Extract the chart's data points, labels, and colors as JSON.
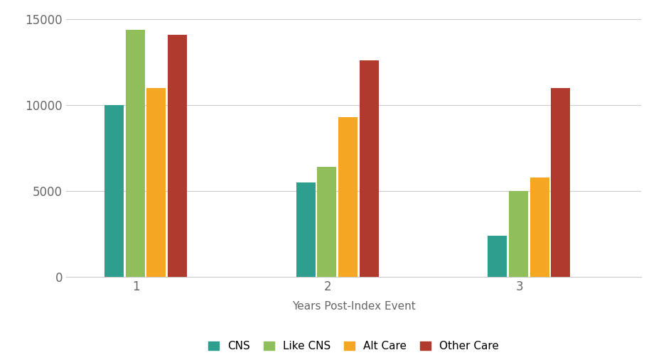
{
  "categories": [
    1,
    2,
    3
  ],
  "series": {
    "CNS": [
      10000,
      5500,
      2400
    ],
    "Like CNS": [
      14400,
      6400,
      5000
    ],
    "Alt Care": [
      11000,
      9300,
      5800
    ],
    "Other Care": [
      14100,
      12600,
      11000
    ]
  },
  "colors": {
    "CNS": "#2e9e8e",
    "Like CNS": "#8fbe5a",
    "Alt Care": "#f5a623",
    "Other Care": "#b03a2e"
  },
  "xlabel": "Years Post-Index Event",
  "ylim": [
    0,
    15500
  ],
  "yticks": [
    0,
    5000,
    10000,
    15000
  ],
  "bar_width": 0.1,
  "background_color": "#ffffff",
  "grid_color": "#cccccc",
  "legend_labels": [
    "CNS",
    "Like CNS",
    "Alt Care",
    "Other Care"
  ]
}
